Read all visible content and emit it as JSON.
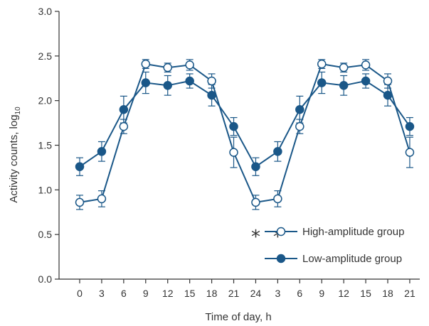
{
  "chart_data": {
    "type": "line",
    "title": "",
    "xlabel": "Time of day, h",
    "ylabel": "Activity counts, log",
    "ylabel_subscript": "10",
    "ylim": [
      0.0,
      3.0
    ],
    "yticks": [
      "0.0",
      "0.5",
      "1.0",
      "1.5",
      "2.0",
      "2.5",
      "3.0"
    ],
    "x": [
      "0",
      "3",
      "6",
      "9",
      "12",
      "15",
      "18",
      "21",
      "24",
      "3",
      "6",
      "9",
      "12",
      "15",
      "18",
      "21"
    ],
    "grid": false,
    "legend_position": "bottom-right",
    "colors": {
      "series": "#1a5788",
      "axis": "#333333"
    },
    "series": [
      {
        "name": "High-amplitude group",
        "marker": "open-circle",
        "values": [
          0.86,
          0.9,
          1.71,
          2.41,
          2.37,
          2.4,
          2.22,
          1.42,
          0.86,
          0.9,
          1.71,
          2.41,
          2.37,
          2.4,
          2.22,
          1.42
        ],
        "errors": [
          0.08,
          0.09,
          0.08,
          0.05,
          0.05,
          0.06,
          0.08,
          0.17,
          0.08,
          0.09,
          0.08,
          0.05,
          0.05,
          0.06,
          0.08,
          0.17
        ]
      },
      {
        "name": "Low-amplitude group",
        "marker": "filled-circle",
        "values": [
          1.26,
          1.43,
          1.9,
          2.2,
          2.17,
          2.22,
          2.06,
          1.71,
          1.26,
          1.43,
          1.9,
          2.2,
          2.17,
          2.22,
          2.06,
          1.71
        ],
        "errors": [
          0.1,
          0.11,
          0.15,
          0.12,
          0.11,
          0.08,
          0.12,
          0.1,
          0.1,
          0.11,
          0.15,
          0.12,
          0.11,
          0.08,
          0.12,
          0.1
        ]
      }
    ],
    "annotations": [
      {
        "text": "*",
        "x_index": 8,
        "y": 0.55
      },
      {
        "text": "*",
        "x_index": 9,
        "y": 0.55
      }
    ]
  }
}
